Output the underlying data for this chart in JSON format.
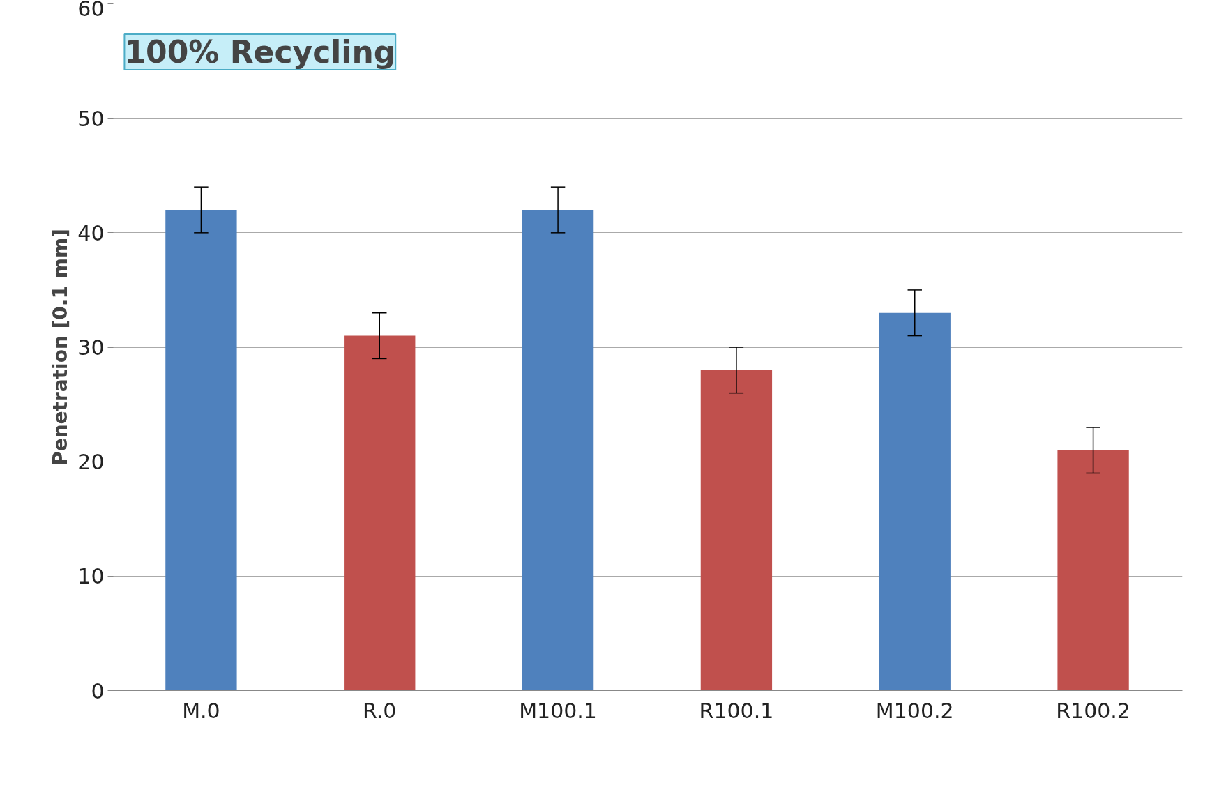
{
  "chart_data": {
    "type": "bar",
    "title": "100% Recycling",
    "ylabel": "Penetration [0.1 mm]",
    "categories": [
      "M.0",
      "R.0",
      "M100.1",
      "R100.1",
      "M100.2",
      "R100.2"
    ],
    "values": [
      42,
      31,
      42,
      28,
      33,
      21
    ],
    "colors": [
      "#4f81bd",
      "#c0504d",
      "#4f81bd",
      "#c0504d",
      "#4f81bd",
      "#c0504d"
    ],
    "errors": [
      2,
      2,
      2,
      2,
      2,
      2
    ],
    "ylim": [
      0,
      60
    ],
    "yticks": [
      0,
      10,
      20,
      30,
      40,
      50,
      60
    ],
    "grid": "y"
  }
}
